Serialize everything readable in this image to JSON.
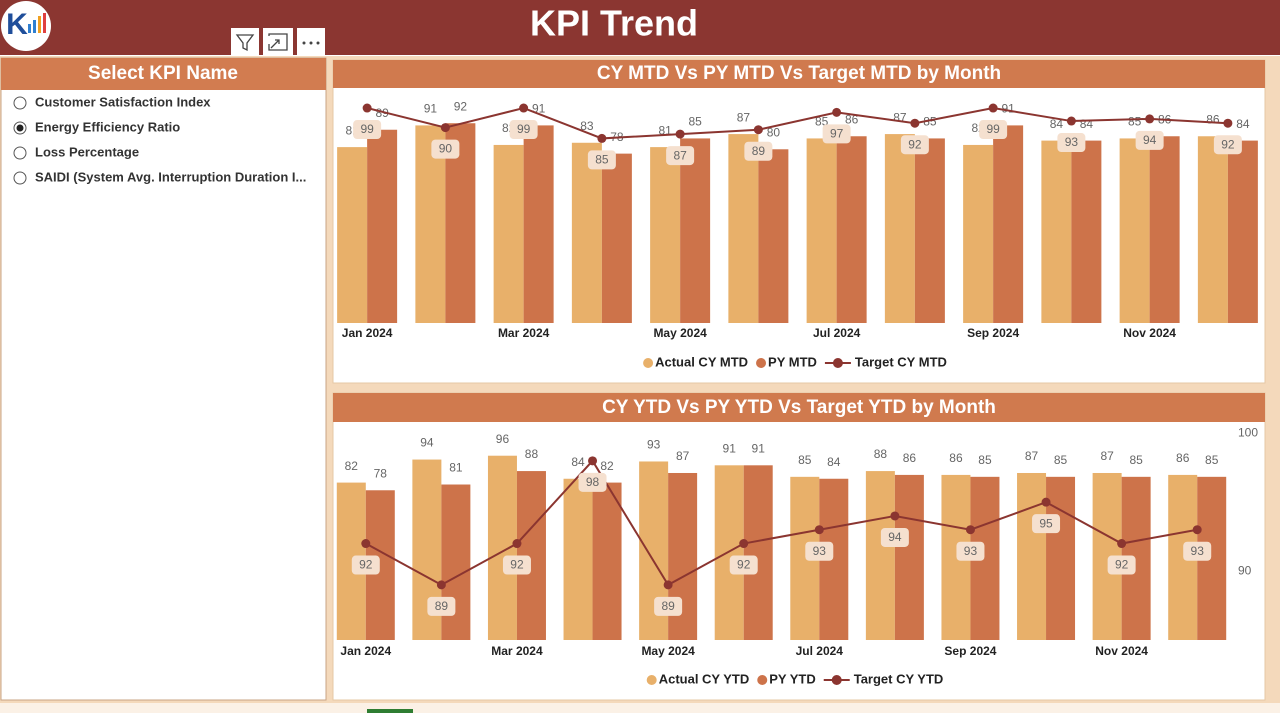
{
  "header": {
    "title": "KPI Trend"
  },
  "slicer": {
    "title": "Select KPI Name",
    "options": [
      "Customer Satisfaction Index",
      "Energy Efficiency Ratio",
      "Loss Percentage",
      "SAIDI (System Avg. Interruption Duration I..."
    ],
    "selected": 1
  },
  "chart_data": [
    {
      "type": "bar",
      "title": "CY MTD Vs PY MTD Vs Target MTD by Month",
      "categories": [
        "Jan 2024",
        null,
        "Mar 2024",
        null,
        "May 2024",
        null,
        "Jul 2024",
        null,
        "Sep 2024",
        null,
        "Nov 2024",
        null
      ],
      "series": [
        {
          "name": "Actual CY MTD",
          "color": "#e8b06a",
          "values": [
            81,
            91,
            82,
            83,
            81,
            87,
            85,
            87,
            82,
            84,
            85,
            86
          ]
        },
        {
          "name": "PY MTD",
          "color": "#cd734a",
          "values": [
            89,
            92,
            91,
            78,
            85,
            80,
            86,
            85,
            91,
            84,
            86,
            84
          ]
        },
        {
          "name": "Target CY MTD",
          "color": "#8b3530",
          "type": "line",
          "values": [
            99,
            90,
            99,
            85,
            87,
            89,
            97,
            92,
            99,
            93,
            94,
            92
          ]
        }
      ],
      "ylim": [
        0,
        105
      ]
    },
    {
      "type": "bar",
      "title": "CY YTD Vs PY YTD Vs Target YTD by Month",
      "categories": [
        "Jan 2024",
        null,
        "Mar 2024",
        null,
        "May 2024",
        null,
        "Jul 2024",
        null,
        "Sep 2024",
        null,
        "Nov 2024",
        null
      ],
      "series": [
        {
          "name": "Actual CY YTD",
          "color": "#e8b06a",
          "values": [
            82,
            94,
            96,
            84,
            93,
            91,
            85,
            88,
            86,
            87,
            87,
            86
          ]
        },
        {
          "name": "PY YTD",
          "color": "#cd734a",
          "values": [
            78,
            81,
            88,
            82,
            87,
            91,
            84,
            86,
            85,
            85,
            85,
            85
          ]
        },
        {
          "name": "Target CY YTD",
          "color": "#8b3530",
          "type": "line",
          "axis": "y2",
          "values": [
            92,
            89,
            92,
            98,
            89,
            92,
            93,
            94,
            93,
            95,
            92,
            93
          ]
        }
      ],
      "ylim": [
        0,
        112
      ],
      "y2lim": [
        85,
        100.6
      ],
      "y2ticks": [
        90,
        100
      ]
    }
  ]
}
